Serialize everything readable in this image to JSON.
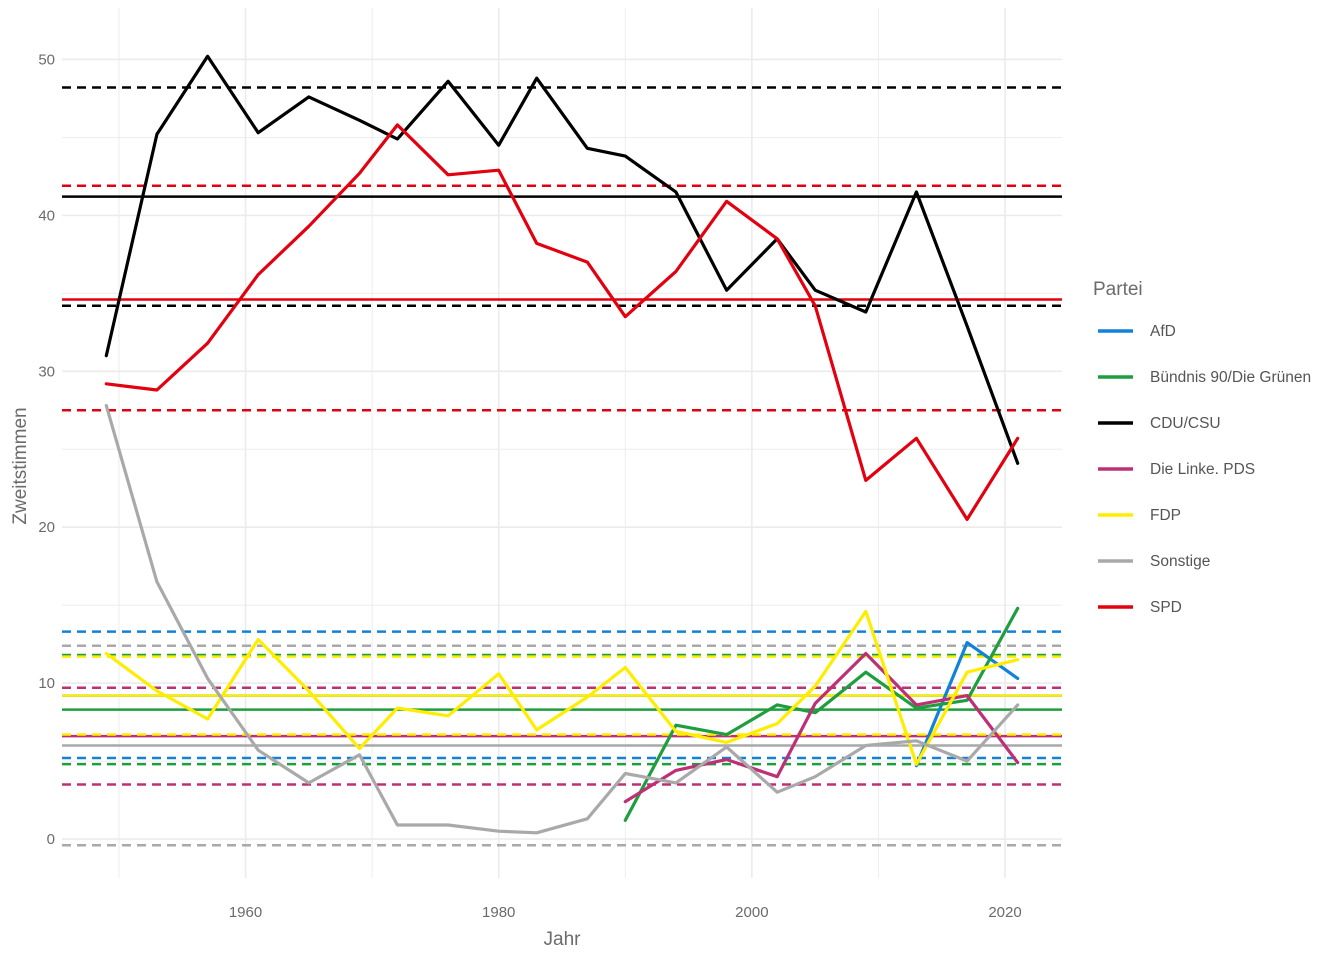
{
  "chart_data": {
    "type": "line",
    "xlabel": "Jahr",
    "ylabel": "Zweitstimmen",
    "xlim": [
      1945.5,
      2024.5
    ],
    "ylim": [
      -2.5,
      53.3
    ],
    "x_ticks": [
      1960,
      1980,
      2000,
      2020
    ],
    "y_ticks": [
      0,
      10,
      20,
      30,
      40,
      50
    ],
    "grid": true,
    "legend": {
      "title": "Partei",
      "position": "right"
    },
    "series": [
      {
        "name": "AfD",
        "color": "#1182d9",
        "x": [
          2013,
          2017,
          2021
        ],
        "y": [
          4.7,
          12.6,
          10.3
        ],
        "mean": 9.2,
        "lower": 5.2,
        "upper": 13.3
      },
      {
        "name": "Bündnis 90/Die Grünen",
        "color": "#1f9e3f",
        "x": [
          1990,
          1994,
          1998,
          2002,
          2005,
          2009,
          2013,
          2017,
          2021
        ],
        "y": [
          1.2,
          7.3,
          6.7,
          8.6,
          8.1,
          10.7,
          8.4,
          8.9,
          14.8
        ],
        "mean": 8.3,
        "lower": 4.8,
        "upper": 11.8
      },
      {
        "name": "CDU/CSU",
        "color": "#000000",
        "x": [
          1949,
          1953,
          1957,
          1961,
          1965,
          1969,
          1972,
          1976,
          1980,
          1983,
          1987,
          1990,
          1994,
          1998,
          2002,
          2005,
          2009,
          2013,
          2017,
          2021
        ],
        "y": [
          31.0,
          45.2,
          50.2,
          45.3,
          47.6,
          46.1,
          44.9,
          48.6,
          44.5,
          48.8,
          44.3,
          43.8,
          41.5,
          35.2,
          38.5,
          35.2,
          33.8,
          41.5,
          32.9,
          24.1
        ],
        "mean": 41.2,
        "lower": 34.2,
        "upper": 48.2
      },
      {
        "name": "Die Linke. PDS",
        "color": "#be3075",
        "x": [
          1990,
          1994,
          1998,
          2002,
          2005,
          2009,
          2013,
          2017,
          2021
        ],
        "y": [
          2.4,
          4.4,
          5.1,
          4.0,
          8.7,
          11.9,
          8.6,
          9.2,
          4.9
        ],
        "mean": 6.6,
        "lower": 3.5,
        "upper": 9.7
      },
      {
        "name": "FDP",
        "color": "#ffed00",
        "x": [
          1949,
          1953,
          1957,
          1961,
          1965,
          1969,
          1972,
          1976,
          1980,
          1983,
          1987,
          1990,
          1994,
          1998,
          2002,
          2005,
          2009,
          2013,
          2017,
          2021
        ],
        "y": [
          11.9,
          9.5,
          7.7,
          12.8,
          9.5,
          5.8,
          8.4,
          7.9,
          10.6,
          7.0,
          9.1,
          11.0,
          6.9,
          6.2,
          7.4,
          9.8,
          14.6,
          4.8,
          10.7,
          11.5
        ],
        "mean": 9.2,
        "lower": 6.7,
        "upper": 11.7
      },
      {
        "name": "Sonstige",
        "color": "#a9a9a9",
        "x": [
          1949,
          1953,
          1957,
          1961,
          1965,
          1969,
          1972,
          1976,
          1980,
          1983,
          1987,
          1990,
          1994,
          1998,
          2002,
          2005,
          2009,
          2013,
          2017,
          2021
        ],
        "y": [
          27.8,
          16.5,
          10.3,
          5.7,
          3.6,
          5.4,
          0.9,
          0.9,
          0.5,
          0.4,
          1.3,
          4.2,
          3.6,
          5.9,
          3.0,
          4.0,
          6.0,
          6.3,
          5.0,
          8.6
        ],
        "mean": 6.0,
        "lower": -0.4,
        "upper": 12.4
      },
      {
        "name": "SPD",
        "color": "#e3000f",
        "x": [
          1949,
          1953,
          1957,
          1961,
          1965,
          1969,
          1972,
          1976,
          1980,
          1983,
          1987,
          1990,
          1994,
          1998,
          2002,
          2005,
          2009,
          2013,
          2017,
          2021
        ],
        "y": [
          29.2,
          28.8,
          31.8,
          36.2,
          39.3,
          42.7,
          45.8,
          42.6,
          42.9,
          38.2,
          37.0,
          33.5,
          36.4,
          40.9,
          38.5,
          34.2,
          23.0,
          25.7,
          20.5,
          25.7
        ],
        "mean": 34.6,
        "lower": 27.5,
        "upper": 41.9
      }
    ]
  }
}
